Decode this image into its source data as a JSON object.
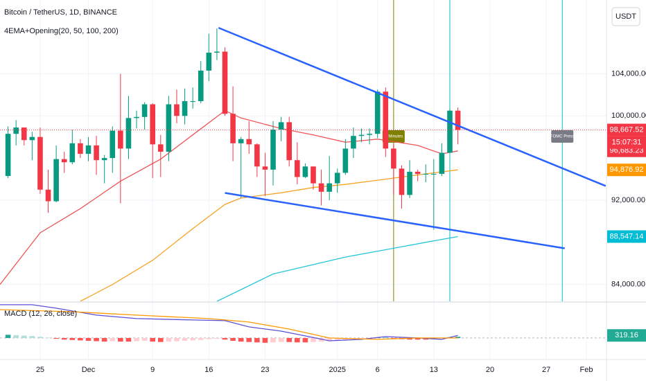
{
  "chart_data": [
    {
      "type": "candlestick",
      "title": "Bitcoin / TetherUS, 1D, BINANCE",
      "subtitle": "4EMA+Opening(20, 50, 100, 200)",
      "currency_button": "USDT",
      "x": [
        -41,
        -40,
        -39,
        -38,
        -37,
        -36,
        -35,
        -34,
        -33,
        -32,
        -31,
        -30,
        -29,
        -28,
        -27,
        -26,
        -25,
        -24,
        -23,
        -22,
        -21,
        -20,
        -19,
        -18,
        -17,
        -16,
        -15,
        -14,
        -13,
        -12,
        -11,
        -10,
        -9,
        -8,
        -7,
        -6,
        -5,
        -4,
        -3,
        -2,
        -1,
        0,
        1,
        2,
        3,
        4,
        5,
        6,
        7,
        8,
        9,
        10,
        11,
        12,
        13,
        14,
        15
      ],
      "open": [
        94300,
        98300,
        98900,
        97700,
        98000,
        93000,
        91900,
        95900,
        95600,
        97400,
        96400,
        97200,
        95800,
        96000,
        98600,
        96900,
        99800,
        99900,
        101100,
        97300,
        96600,
        101100,
        100000,
        101400,
        101400,
        104300,
        106000,
        106100,
        100200,
        97400,
        97800,
        97300,
        95200,
        94900,
        98700,
        99400,
        95800,
        94200,
        95200,
        93600,
        92800,
        93600,
        94600,
        96900,
        98100,
        98200,
        98300,
        102300,
        96900,
        95000,
        92500,
        94700,
        94500,
        94500,
        94500,
        96500,
        100500
      ],
      "high": [
        99000,
        99600,
        98900,
        98500,
        98900,
        94900,
        97200,
        96600,
        98700,
        97800,
        98000,
        98100,
        96300,
        99000,
        104000,
        101900,
        100500,
        101300,
        101200,
        98200,
        101900,
        102500,
        102600,
        102700,
        105200,
        107800,
        108300,
        106500,
        102800,
        98000,
        99500,
        97400,
        96500,
        99500,
        99900,
        99900,
        97500,
        95500,
        95200,
        94900,
        96200,
        95000,
        97800,
        98900,
        98800,
        98800,
        102500,
        102700,
        97300,
        95300,
        95800,
        94900,
        95400,
        95900,
        97400,
        100700,
        100800
      ],
      "low": [
        94100,
        97200,
        97200,
        95800,
        92600,
        90800,
        91800,
        94600,
        95400,
        96000,
        95700,
        94400,
        93600,
        94600,
        91700,
        95900,
        98800,
        98700,
        94100,
        94200,
        95700,
        99300,
        99200,
        100700,
        101200,
        103300,
        105300,
        100000,
        95700,
        92200,
        96400,
        94200,
        92400,
        93400,
        97600,
        95200,
        93500,
        94100,
        93000,
        91500,
        92000,
        92700,
        94400,
        96000,
        97500,
        97300,
        97900,
        96100,
        92500,
        91200,
        92200,
        93800,
        93700,
        89200,
        94300,
        96500,
        97300
      ],
      "close": [
        98300,
        98900,
        97700,
        98000,
        93000,
        91900,
        95900,
        95600,
        97400,
        96400,
        97200,
        95800,
        96000,
        98600,
        96900,
        99800,
        99900,
        101100,
        97300,
        96600,
        101100,
        100000,
        101400,
        101400,
        104300,
        106000,
        106100,
        100200,
        97400,
        97800,
        97300,
        95200,
        94900,
        98700,
        99400,
        95800,
        94200,
        95200,
        93600,
        92800,
        93600,
        94600,
        96900,
        98100,
        98200,
        98300,
        102300,
        96900,
        95000,
        92500,
        94700,
        94500,
        94500,
        94500,
        96500,
        100500,
        98667.52
      ],
      "up_color": "#089981",
      "down_color": "#f23645",
      "xlim": [
        -42,
        33.5
      ],
      "xticks": [
        {
          "value": -37,
          "label": "25"
        },
        {
          "value": -31,
          "label": "Dec"
        },
        {
          "value": -23,
          "label": "9"
        },
        {
          "value": -16,
          "label": "16"
        },
        {
          "value": -9,
          "label": "23"
        },
        {
          "value": 0,
          "label": "2025"
        },
        {
          "value": 5,
          "label": "6"
        },
        {
          "value": 12,
          "label": "13"
        },
        {
          "value": 19,
          "label": "20"
        },
        {
          "value": 26,
          "label": "27"
        },
        {
          "value": 31,
          "label": "Feb"
        }
      ],
      "ylim": [
        82400,
        111000
      ],
      "yticks": [
        {
          "value": 84000,
          "label": "84,000.00"
        },
        {
          "value": 92000,
          "label": "92,000.00"
        },
        {
          "value": 100000,
          "label": "100,000.00"
        },
        {
          "value": 104000,
          "label": "104,000.00"
        }
      ],
      "grid": true,
      "last_price": {
        "value_label": "98,667.52",
        "countdown": "15:07:31",
        "color": "#f23645"
      },
      "series": [
        {
          "color": "#f05454",
          "x": [
            -42,
            -37,
            -32,
            -27,
            -22,
            -18,
            -14,
            -12,
            -7,
            -3,
            1,
            5,
            10,
            13,
            15
          ],
          "values": [
            84000,
            88900,
            91200,
            93800,
            95900,
            98200,
            100500,
            99800,
            98800,
            98200,
            97500,
            97800,
            97200,
            96400,
            96683.23
          ],
          "last_label": "96,683.23",
          "badge_color": "#f23645"
        },
        {
          "color": "#f7a325",
          "x": [
            -32,
            -28,
            -23,
            -18,
            -14,
            -12,
            -7,
            -3,
            1,
            6,
            11,
            15
          ],
          "values": [
            82400,
            84000,
            86300,
            89300,
            91600,
            92200,
            92700,
            93200,
            93500,
            94000,
            94500,
            94876.92
          ],
          "last_label": "94,876.92",
          "badge_color": "#ff9800"
        },
        {
          "color": "#26c6da",
          "x": [
            -15,
            -8,
            1,
            6,
            11,
            15
          ],
          "values": [
            82400,
            85000,
            86600,
            87300,
            88000,
            88547.14
          ],
          "last_label": "88,547.14",
          "badge_color": "#00bcd4"
        }
      ],
      "trendlines": [
        {
          "color": "#2962ff",
          "x": [
            -14.8,
            33.4
          ],
          "y": [
            108360,
            93350
          ]
        },
        {
          "color": "#2962ff",
          "x": [
            -14,
            28.3
          ],
          "y": [
            92690,
            87430
          ]
        }
      ],
      "events": [
        {
          "x": 7,
          "color": "#808000",
          "label": "C Minutes"
        },
        {
          "x": 14,
          "color": "#00bcd4"
        },
        {
          "x": 28,
          "color": "#00bcd4",
          "label": "FOMC Press",
          "label_color": "#787b86"
        }
      ]
    },
    {
      "type": "macd",
      "title": "MACD (12, 26, close)",
      "ylim": [
        -2600,
        4400
      ],
      "zero": 0,
      "histogram": {
        "x": [
          -41,
          -40,
          -39,
          -38,
          -37,
          -36,
          -35,
          -34,
          -33,
          -32,
          -31,
          -30,
          -29,
          -28,
          -27,
          -26,
          -25,
          -24,
          -23,
          -22,
          -21,
          -20,
          -19,
          -18,
          -17,
          -16,
          -15,
          -14,
          -13,
          -12,
          -11,
          -10,
          -9,
          -8,
          -7,
          -6,
          -5,
          -4,
          -3,
          -2,
          -1,
          0,
          1,
          2,
          3,
          4,
          5,
          6,
          7,
          8,
          9,
          10,
          11,
          12,
          13,
          14,
          15
        ],
        "values": [
          400,
          350,
          300,
          250,
          150,
          50,
          -100,
          -200,
          -250,
          -300,
          -350,
          -400,
          -450,
          -400,
          -450,
          -450,
          -400,
          -350,
          -450,
          -500,
          -450,
          -400,
          -350,
          -300,
          -250,
          -150,
          -100,
          -200,
          -350,
          -450,
          -500,
          -550,
          -600,
          -550,
          -500,
          -500,
          -550,
          -550,
          -500,
          -450,
          -400,
          -350,
          -250,
          -150,
          -100,
          -50,
          50,
          50,
          -50,
          -150,
          -200,
          -200,
          -200,
          -150,
          -50,
          100,
          150
        ],
        "colors": [
          "#26a69a",
          "#b2dfdb",
          "#ffcdd2",
          "#ff5252"
        ]
      },
      "macd": {
        "color": "#5b4fd6",
        "x": [
          -42,
          -38,
          -35,
          -30,
          -25,
          -18,
          -14,
          -11,
          -7,
          -4,
          -1,
          3,
          6,
          10,
          13,
          15
        ],
        "values": [
          4150,
          4150,
          3720,
          2850,
          2420,
          2250,
          2160,
          1380,
          860,
          260,
          -350,
          -170,
          170,
          0,
          -170,
          319.16
        ],
        "last_label": "319.16",
        "badge_color": "#22ab94"
      },
      "signal": {
        "color": "#ff9800",
        "x": [
          -42,
          -33,
          -25,
          -16,
          -11,
          -6,
          -1,
          5,
          10,
          15
        ],
        "values": [
          3540,
          3280,
          2850,
          2420,
          1990,
          1120,
          0,
          -170,
          0,
          0
        ]
      }
    }
  ]
}
